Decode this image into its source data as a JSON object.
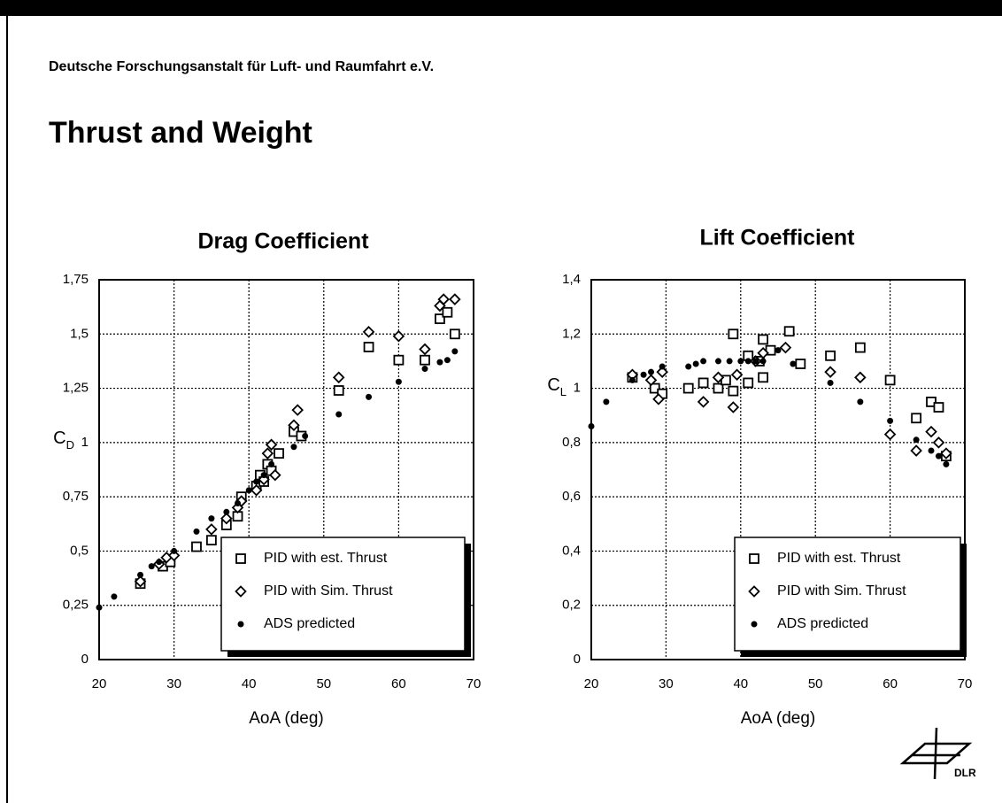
{
  "header": {
    "organization": "Deutsche Forschungsanstalt für Luft- und Raumfahrt e.V.",
    "title": "Thrust and Weight"
  },
  "logo": "DLR",
  "chart_data": [
    {
      "type": "scatter",
      "title": "Drag Coefficient",
      "x_label": "AoA (deg)",
      "y_label": {
        "main": "C",
        "sub": "D"
      },
      "xlim": [
        20,
        70
      ],
      "xticks": [
        20,
        30,
        40,
        50,
        60,
        70
      ],
      "ylim": [
        0,
        1.75
      ],
      "yticks": [
        0,
        {
          "value": 0.25,
          "label": "0,25"
        },
        {
          "value": 0.5,
          "label": "0,5"
        },
        {
          "value": 0.75,
          "label": "0,75"
        },
        1,
        {
          "value": 1.25,
          "label": "1,25"
        },
        {
          "value": 1.5,
          "label": "1,5"
        },
        {
          "value": 1.75,
          "label": "1,75"
        }
      ],
      "grid": true,
      "legend": "lower right",
      "series": [
        {
          "name": "PID with est. Thrust",
          "marker": "square",
          "color": "#000000",
          "x": [
            25.5,
            28.5,
            29.5,
            33,
            35,
            37,
            38.5,
            39,
            41,
            41.5,
            42,
            42.5,
            43,
            44,
            46,
            47,
            52,
            56,
            60,
            63.5,
            65.5,
            66.5,
            67.5
          ],
          "values": [
            0.35,
            0.43,
            0.45,
            0.52,
            0.55,
            0.62,
            0.66,
            0.75,
            0.8,
            0.85,
            0.82,
            0.9,
            0.87,
            0.95,
            1.05,
            1.03,
            1.24,
            1.44,
            1.38,
            1.38,
            1.57,
            1.6,
            1.5
          ]
        },
        {
          "name": "PID with Sim. Thrust",
          "marker": "diamond",
          "color": "#000000",
          "x": [
            25.5,
            28,
            29,
            30,
            35,
            37,
            38.5,
            39,
            41,
            42,
            42.5,
            43,
            43.5,
            46,
            46.5,
            52,
            56,
            60,
            63.5,
            65.5,
            66,
            67.5
          ],
          "values": [
            0.36,
            0.44,
            0.47,
            0.48,
            0.6,
            0.65,
            0.7,
            0.73,
            0.78,
            0.83,
            0.95,
            0.99,
            0.85,
            1.08,
            1.15,
            1.3,
            1.51,
            1.49,
            1.43,
            1.63,
            1.66,
            1.66
          ]
        },
        {
          "name": "ADS predicted",
          "marker": "dot",
          "color": "#000000",
          "x": [
            20,
            22,
            25.5,
            27,
            28,
            30,
            33,
            35,
            37,
            38.5,
            40,
            41,
            42,
            43,
            46,
            47.5,
            52,
            56,
            60,
            63.5,
            65.5,
            66.5,
            67.5
          ],
          "values": [
            0.24,
            0.29,
            0.39,
            0.43,
            0.45,
            0.5,
            0.59,
            0.65,
            0.68,
            0.72,
            0.78,
            0.82,
            0.85,
            0.9,
            0.98,
            1.03,
            1.13,
            1.21,
            1.28,
            1.34,
            1.37,
            1.38,
            1.42
          ]
        }
      ]
    },
    {
      "type": "scatter",
      "title": "Lift Coefficient",
      "x_label": "AoA (deg)",
      "y_label": {
        "main": "C",
        "sub": "L"
      },
      "xlim": [
        20,
        70
      ],
      "xticks": [
        20,
        30,
        40,
        50,
        60,
        70
      ],
      "ylim": [
        0,
        1.4
      ],
      "yticks": [
        0,
        {
          "value": 0.2,
          "label": "0,2"
        },
        {
          "value": 0.4,
          "label": "0,4"
        },
        {
          "value": 0.6,
          "label": "0,6"
        },
        {
          "value": 0.8,
          "label": "0,8"
        },
        1,
        {
          "value": 1.2,
          "label": "1,2"
        },
        {
          "value": 1.4,
          "label": "1,4"
        }
      ],
      "grid": true,
      "legend": "lower right",
      "series": [
        {
          "name": "PID with est. Thrust",
          "marker": "square",
          "color": "#000000",
          "x": [
            25.5,
            28.5,
            29.5,
            33,
            35,
            37,
            38,
            39,
            39,
            41,
            41,
            42.5,
            43,
            43,
            44,
            46.5,
            48,
            52,
            56,
            60,
            63.5,
            65.5,
            66.5,
            67.5
          ],
          "values": [
            1.04,
            1.0,
            0.98,
            1.0,
            1.02,
            1.0,
            1.03,
            0.99,
            1.2,
            1.12,
            1.02,
            1.1,
            1.18,
            1.04,
            1.14,
            1.21,
            1.09,
            1.12,
            1.15,
            1.03,
            0.89,
            0.95,
            0.93,
            0.75
          ]
        },
        {
          "name": "PID with Sim. Thrust",
          "marker": "diamond",
          "color": "#000000",
          "x": [
            25.5,
            28,
            29,
            29.5,
            35,
            37,
            39,
            39.5,
            42,
            43,
            46,
            52,
            56,
            60,
            63.5,
            65.5,
            66.5,
            67.5
          ],
          "values": [
            1.05,
            1.03,
            0.96,
            1.06,
            0.95,
            1.04,
            0.93,
            1.05,
            1.1,
            1.13,
            1.15,
            1.06,
            1.04,
            0.83,
            0.77,
            0.84,
            0.8,
            0.76
          ]
        },
        {
          "name": "ADS predicted",
          "marker": "dot",
          "color": "#000000",
          "x": [
            20,
            22,
            25.5,
            27,
            28,
            29.5,
            33,
            34,
            35,
            37,
            38.5,
            40,
            41,
            42,
            43,
            45,
            47,
            52,
            56,
            60,
            63.5,
            65.5,
            66.5,
            67.5
          ],
          "values": [
            0.86,
            0.95,
            1.03,
            1.05,
            1.06,
            1.08,
            1.08,
            1.09,
            1.1,
            1.1,
            1.1,
            1.1,
            1.1,
            1.1,
            1.1,
            1.14,
            1.09,
            1.02,
            0.95,
            0.88,
            0.81,
            0.77,
            0.75,
            0.72
          ]
        }
      ]
    }
  ]
}
